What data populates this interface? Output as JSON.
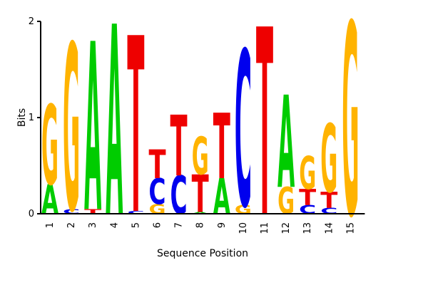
{
  "chart_data": {
    "type": "sequence-logo",
    "xlabel": "Sequence Position",
    "ylabel": "Bits",
    "ylim": [
      0,
      2
    ],
    "yticks": [
      "0",
      "1",
      "2"
    ],
    "positions": [
      "1",
      "2",
      "3",
      "4",
      "5",
      "6",
      "7",
      "8",
      "9",
      "10",
      "11",
      "12",
      "13",
      "14",
      "15"
    ],
    "colors": {
      "A": "#00cc00",
      "C": "#0000ee",
      "G": "#ffb300",
      "T": "#ee0000"
    },
    "columns": [
      {
        "position": "1",
        "stack": [
          {
            "base": "A",
            "bits": 0.31
          },
          {
            "base": "G",
            "bits": 0.83
          }
        ]
      },
      {
        "position": "2",
        "stack": [
          {
            "base": "C",
            "bits": 0.05
          },
          {
            "base": "G",
            "bits": 1.73
          }
        ]
      },
      {
        "position": "3",
        "stack": [
          {
            "base": "T",
            "bits": 0.05
          },
          {
            "base": "A",
            "bits": 1.75
          }
        ]
      },
      {
        "position": "4",
        "stack": [
          {
            "base": "A",
            "bits": 1.98
          }
        ]
      },
      {
        "position": "5",
        "stack": [
          {
            "base": "C",
            "bits": 0.03
          },
          {
            "base": "T",
            "bits": 1.83
          }
        ]
      },
      {
        "position": "6",
        "stack": [
          {
            "base": "G",
            "bits": 0.1
          },
          {
            "base": "C",
            "bits": 0.27
          },
          {
            "base": "T",
            "bits": 0.3
          }
        ]
      },
      {
        "position": "7",
        "stack": [
          {
            "base": "C",
            "bits": 0.4
          },
          {
            "base": "T",
            "bits": 0.63
          }
        ]
      },
      {
        "position": "8",
        "stack": [
          {
            "base": "A",
            "bits": 0.02
          },
          {
            "base": "T",
            "bits": 0.39
          },
          {
            "base": "G",
            "bits": 0.39
          }
        ]
      },
      {
        "position": "9",
        "stack": [
          {
            "base": "A",
            "bits": 0.37
          },
          {
            "base": "T",
            "bits": 0.68
          }
        ]
      },
      {
        "position": "10",
        "stack": [
          {
            "base": "G",
            "bits": 0.09
          },
          {
            "base": "C",
            "bits": 1.62
          }
        ]
      },
      {
        "position": "11",
        "stack": [
          {
            "base": "T",
            "bits": 1.95
          }
        ]
      },
      {
        "position": "12",
        "stack": [
          {
            "base": "G",
            "bits": 0.28
          },
          {
            "base": "A",
            "bits": 0.96
          }
        ]
      },
      {
        "position": "13",
        "stack": [
          {
            "base": "C",
            "bits": 0.09
          },
          {
            "base": "T",
            "bits": 0.17
          },
          {
            "base": "G",
            "bits": 0.34
          }
        ]
      },
      {
        "position": "14",
        "stack": [
          {
            "base": "C",
            "bits": 0.06
          },
          {
            "base": "T",
            "bits": 0.17
          },
          {
            "base": "G",
            "bits": 0.71
          }
        ]
      },
      {
        "position": "15",
        "stack": [
          {
            "base": "G",
            "bits": 2.0
          }
        ]
      }
    ]
  }
}
